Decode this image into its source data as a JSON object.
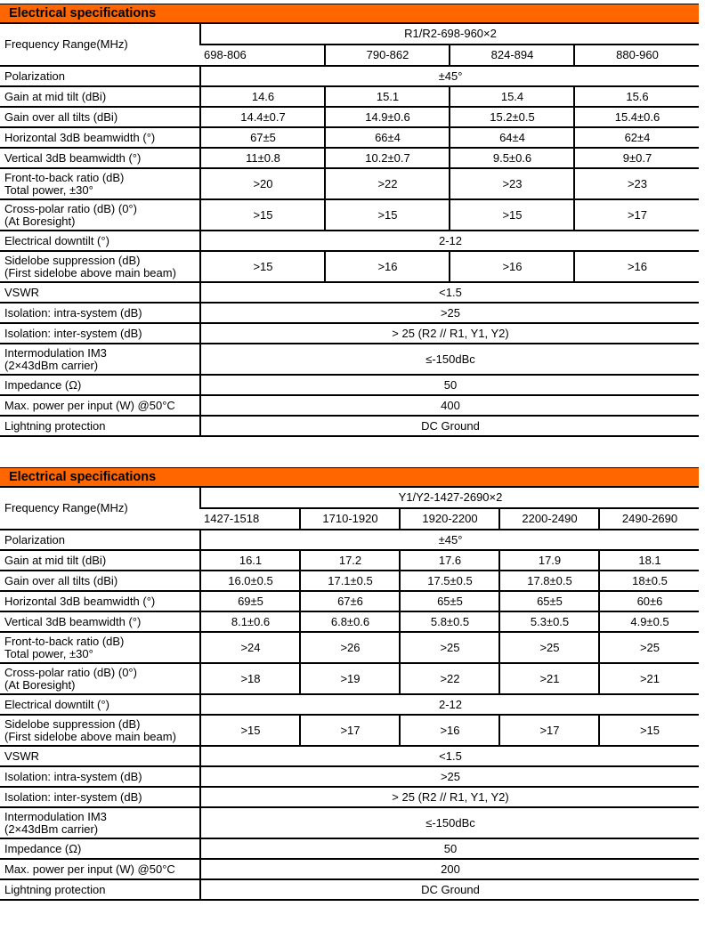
{
  "tables": [
    {
      "title": "Electrical specifications",
      "freq_label": "Frequency Range(MHz)",
      "freq_group": "R1/R2-698-960×2",
      "bands": [
        "698-806",
        "790-862",
        "824-894",
        "880-960"
      ],
      "rows": [
        {
          "label": [
            "Polarization"
          ],
          "span": "±45°"
        },
        {
          "label": [
            "Gain at mid tilt (dBi)"
          ],
          "values": [
            "14.6",
            "15.1",
            "15.4",
            "15.6"
          ]
        },
        {
          "label": [
            "Gain over all tilts (dBi)"
          ],
          "values": [
            "14.4±0.7",
            "14.9±0.6",
            "15.2±0.5",
            "15.4±0.6"
          ]
        },
        {
          "label": [
            "Horizontal 3dB beamwidth (°)"
          ],
          "values": [
            "67±5",
            "66±4",
            "64±4",
            "62±4"
          ]
        },
        {
          "label": [
            "Vertical 3dB beamwidth (°)"
          ],
          "values": [
            "11±0.8",
            "10.2±0.7",
            "9.5±0.6",
            "9±0.7"
          ]
        },
        {
          "label": [
            "Front-to-back ratio (dB)",
            "Total power, ±30°"
          ],
          "values": [
            ">20",
            ">22",
            ">23",
            ">23"
          ]
        },
        {
          "label": [
            "Cross-polar ratio (dB) (0°)",
            "(At Boresight)"
          ],
          "values": [
            ">15",
            ">15",
            ">15",
            ">17"
          ]
        },
        {
          "label": [
            "Electrical downtilt (°)"
          ],
          "span": "2-12"
        },
        {
          "label": [
            "Sidelobe suppression (dB)",
            "(First sidelobe above main beam)"
          ],
          "values": [
            ">15",
            ">16",
            ">16",
            ">16"
          ]
        },
        {
          "label": [
            "VSWR"
          ],
          "span": "<1.5"
        },
        {
          "label": [
            "Isolation: intra-system (dB)"
          ],
          "span": ">25"
        },
        {
          "label": [
            "Isolation: inter-system (dB)"
          ],
          "span": "> 25 (R2 // R1, Y1, Y2)"
        },
        {
          "label": [
            "Intermodulation IM3",
            "(2×43dBm carrier)"
          ],
          "span": "≤-150dBc"
        },
        {
          "label": [
            "Impedance (Ω)"
          ],
          "span": "50"
        },
        {
          "label": [
            "Max. power per input (W) @50°C"
          ],
          "span": "400"
        },
        {
          "label": [
            "Lightning protection"
          ],
          "span": "DC Ground"
        }
      ]
    },
    {
      "title": "Electrical specifications",
      "freq_label": "Frequency Range(MHz)",
      "freq_group": "Y1/Y2-1427-2690×2",
      "bands": [
        "1427-1518",
        "1710-1920",
        "1920-2200",
        "2200-2490",
        "2490-2690"
      ],
      "rows": [
        {
          "label": [
            "Polarization"
          ],
          "span": "±45°"
        },
        {
          "label": [
            "Gain at mid tilt (dBi)"
          ],
          "values": [
            "16.1",
            "17.2",
            "17.6",
            "17.9",
            "18.1"
          ]
        },
        {
          "label": [
            "Gain over all tilts (dBi)"
          ],
          "values": [
            "16.0±0.5",
            "17.1±0.5",
            "17.5±0.5",
            "17.8±0.5",
            "18±0.5"
          ]
        },
        {
          "label": [
            "Horizontal 3dB beamwidth (°)"
          ],
          "values": [
            "69±5",
            "67±6",
            "65±5",
            "65±5",
            "60±6"
          ]
        },
        {
          "label": [
            "Vertical 3dB beamwidth (°)"
          ],
          "values": [
            "8.1±0.6",
            "6.8±0.6",
            "5.8±0.5",
            "5.3±0.5",
            "4.9±0.5"
          ]
        },
        {
          "label": [
            " Front-to-back ratio (dB)",
            "Total power, ±30°"
          ],
          "values": [
            ">24",
            ">26",
            ">25",
            ">25",
            ">25"
          ]
        },
        {
          "label": [
            "Cross-polar ratio (dB) (0°)",
            "(At Boresight)"
          ],
          "values": [
            ">18",
            ">19",
            ">22",
            ">21",
            ">21"
          ]
        },
        {
          "label": [
            "Electrical downtilt (°)"
          ],
          "span": "2-12"
        },
        {
          "label": [
            "Sidelobe suppression (dB)",
            "(First sidelobe above main beam)"
          ],
          "values": [
            ">15",
            ">17",
            ">16",
            ">17",
            ">15"
          ]
        },
        {
          "label": [
            "VSWR"
          ],
          "span": "<1.5"
        },
        {
          "label": [
            "Isolation: intra-system (dB)"
          ],
          "span": ">25"
        },
        {
          "label": [
            "Isolation: inter-system (dB)"
          ],
          "span": "> 25 (R2 // R1, Y1, Y2)"
        },
        {
          "label": [
            "Intermodulation IM3",
            "(2×43dBm carrier)"
          ],
          "span": "≤-150dBc"
        },
        {
          "label": [
            "Impedance (Ω)"
          ],
          "span": "50"
        },
        {
          "label": [
            "Max. power per input (W) @50°C"
          ],
          "span": "200"
        },
        {
          "label": [
            "Lightning protection"
          ],
          "span": "DC Ground"
        }
      ],
      "accent_color": "#ff6600"
    }
  ]
}
